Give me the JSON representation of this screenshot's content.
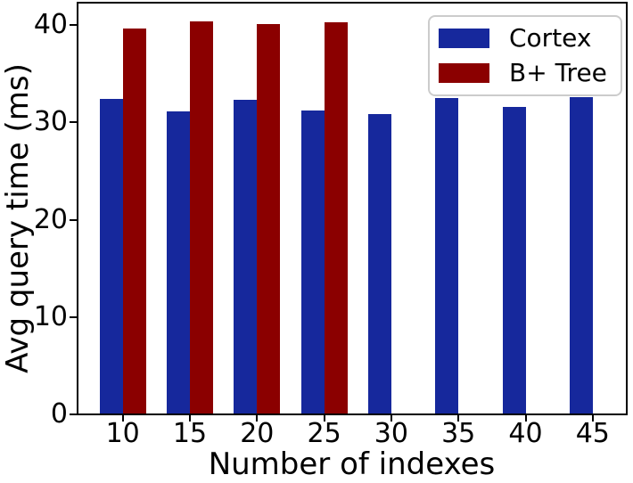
{
  "chart_data": {
    "type": "bar",
    "categories": [
      "10",
      "15",
      "20",
      "25",
      "30",
      "35",
      "40",
      "45"
    ],
    "series": [
      {
        "name": "Cortex",
        "color": "#16289C",
        "values": [
          32.3,
          31.0,
          32.2,
          31.1,
          30.8,
          32.4,
          31.5,
          32.5
        ]
      },
      {
        "name": "B+ Tree",
        "color": "#8B0000",
        "values": [
          39.6,
          40.3,
          40.0,
          40.2,
          null,
          null,
          null,
          null
        ]
      }
    ],
    "title": "",
    "xlabel": "Number of indexes",
    "ylabel": "Avg query time (ms)",
    "yticks": [
      0,
      10,
      20,
      30,
      40
    ],
    "ylim": [
      0,
      42.3
    ],
    "grid": false,
    "legend_position": "upper right",
    "axis_color": "#000000",
    "legend_border_color": "#cccccc"
  }
}
